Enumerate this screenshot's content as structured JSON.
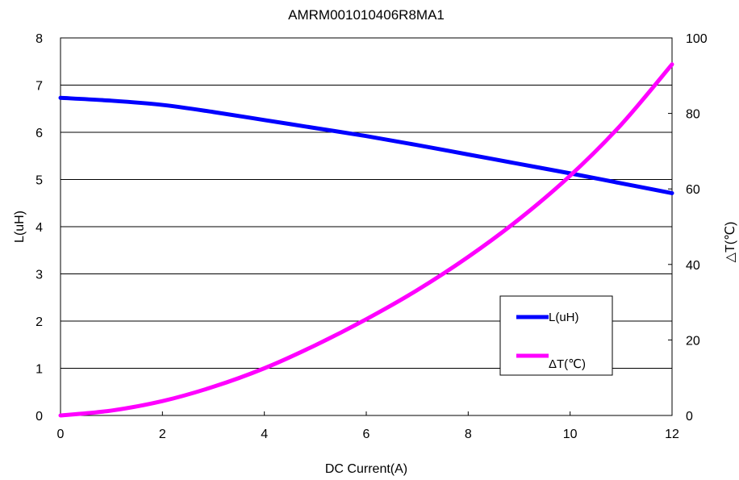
{
  "chart_data": {
    "type": "line",
    "title": "AMRM001010406R8MA1",
    "xlabel": "DC Current(A)",
    "ylabel": "L(uH)",
    "y2label": "△T(℃)",
    "xlim": [
      0,
      12
    ],
    "ylim": [
      0,
      8
    ],
    "y2lim": [
      0,
      100
    ],
    "x_ticks": [
      "0",
      "2",
      "4",
      "6",
      "8",
      "10",
      "12"
    ],
    "y_ticks": [
      "0",
      "1",
      "2",
      "3",
      "4",
      "5",
      "6",
      "7",
      "8"
    ],
    "y2_ticks": [
      "0",
      "20",
      "40",
      "60",
      "80",
      "100"
    ],
    "grid": "horizontal",
    "legend_position": "lower-right",
    "series": [
      {
        "name": "L(uH)",
        "axis": "left",
        "color": "#0000ff",
        "x": [
          0,
          1,
          2,
          3,
          4,
          5,
          6,
          7,
          8,
          9,
          10,
          11,
          12
        ],
        "y": [
          6.73,
          6.67,
          6.58,
          6.43,
          6.26,
          6.09,
          5.92,
          5.73,
          5.53,
          5.33,
          5.13,
          4.92,
          4.71
        ]
      },
      {
        "name": "ΔT(℃)",
        "axis": "right",
        "color": "#ff00ff",
        "x": [
          0,
          1,
          2,
          3,
          4,
          5,
          6,
          7,
          8,
          9,
          10,
          11,
          12
        ],
        "y": [
          0,
          1.3,
          3.8,
          7.6,
          12.5,
          18.6,
          25.5,
          33.2,
          42,
          52,
          63.5,
          77,
          93
        ]
      }
    ]
  }
}
